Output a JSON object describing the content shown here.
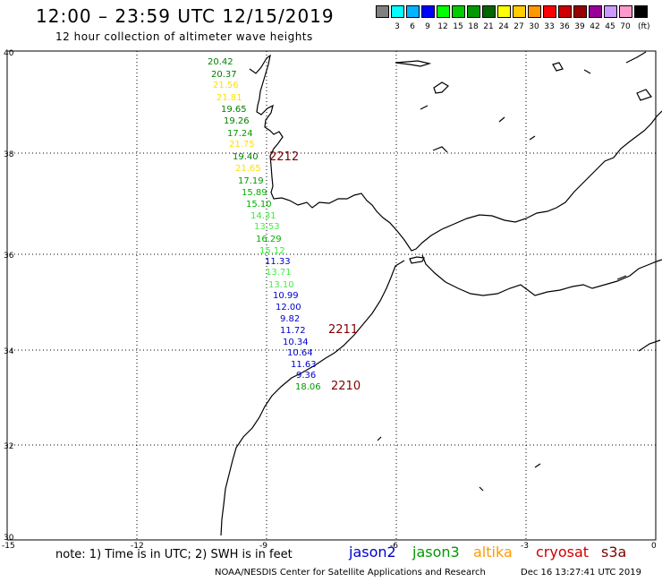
{
  "header": {
    "title": "12:00 – 23:59 UTC 12/15/2019",
    "subtitle": "12 hour collection of altimeter wave heights"
  },
  "legend": {
    "swatches": [
      {
        "color": "#808080",
        "label": ""
      },
      {
        "color": "#00ffff",
        "label": "3"
      },
      {
        "color": "#00b4ff",
        "label": "6"
      },
      {
        "color": "#0000ff",
        "label": "9"
      },
      {
        "color": "#00ff00",
        "label": "12"
      },
      {
        "color": "#00cc00",
        "label": "15"
      },
      {
        "color": "#009900",
        "label": "18"
      },
      {
        "color": "#006600",
        "label": "21"
      },
      {
        "color": "#ffff00",
        "label": "24"
      },
      {
        "color": "#ffcc00",
        "label": "27"
      },
      {
        "color": "#ff9900",
        "label": "30"
      },
      {
        "color": "#ff0000",
        "label": "33"
      },
      {
        "color": "#cc0000",
        "label": "36"
      },
      {
        "color": "#990000",
        "label": "39"
      },
      {
        "color": "#990099",
        "label": "42"
      },
      {
        "color": "#cc99ff",
        "label": "45"
      },
      {
        "color": "#ff99cc",
        "label": "70"
      },
      {
        "color": "#000000",
        "label": ""
      }
    ],
    "unit": "(ft)"
  },
  "map": {
    "lat_range": [
      30,
      40
    ],
    "lon_range": [
      -15,
      0
    ],
    "lat_ticks": [
      "40",
      "38",
      "36",
      "34",
      "32",
      "30"
    ],
    "lon_ticks": [
      "-15",
      "-12",
      "-9",
      "-6",
      "-3",
      "0"
    ]
  },
  "observations": [
    {
      "value": "20.42",
      "color": "#007f00"
    },
    {
      "value": "20.37",
      "color": "#007f00"
    },
    {
      "value": "21.56",
      "color": "#ffe000"
    },
    {
      "value": "21.81",
      "color": "#ffe000"
    },
    {
      "value": "19.65",
      "color": "#007f00"
    },
    {
      "value": "19.26",
      "color": "#007f00"
    },
    {
      "value": "17.24",
      "color": "#009900"
    },
    {
      "value": "21.75",
      "color": "#ffe000"
    },
    {
      "value": "19.40",
      "color": "#007f00"
    },
    {
      "value": "21.65",
      "color": "#ffe000"
    },
    {
      "value": "17.19",
      "color": "#009900"
    },
    {
      "value": "15.89",
      "color": "#00b000"
    },
    {
      "value": "15.10",
      "color": "#00b000"
    },
    {
      "value": "14.31",
      "color": "#33ee33"
    },
    {
      "value": "13.53",
      "color": "#44ee44"
    },
    {
      "value": "16.29",
      "color": "#00b000"
    },
    {
      "value": "15.12",
      "color": "#33ee33"
    },
    {
      "value": "11.33",
      "color": "#0000cc"
    },
    {
      "value": "13.71",
      "color": "#44ee44"
    },
    {
      "value": "13.10",
      "color": "#44ee44"
    },
    {
      "value": "10.99",
      "color": "#0000cc"
    },
    {
      "value": "12.00",
      "color": "#0000cc"
    },
    {
      "value": "9.82",
      "color": "#0000cc"
    },
    {
      "value": "11.72",
      "color": "#0000cc"
    },
    {
      "value": "10.34",
      "color": "#0000cc"
    },
    {
      "value": "10.64",
      "color": "#0000cc"
    },
    {
      "value": "11.63",
      "color": "#0000cc"
    },
    {
      "value": "9.36",
      "color": "#0000cc"
    },
    {
      "value": "18.06",
      "color": "#009900"
    }
  ],
  "pass_labels": [
    {
      "label": "2212",
      "color": "#800000"
    },
    {
      "label": "2211",
      "color": "#800000"
    },
    {
      "label": "2210",
      "color": "#800000"
    }
  ],
  "footer": {
    "note": "note: 1) Time is in UTC; 2) SWH is in feet",
    "satellites": [
      {
        "name": "jason2",
        "color": "#0000cc"
      },
      {
        "name": "jason3",
        "color": "#009900"
      },
      {
        "name": "altika",
        "color": "#ff9900"
      },
      {
        "name": "cryosat",
        "color": "#cc0000"
      },
      {
        "name": "s3a",
        "color": "#800000"
      }
    ],
    "credit": "NOAA/NESDIS Center for Satellite Applications and Research",
    "timestamp": "Dec 16 13:27:41 UTC 2019"
  }
}
